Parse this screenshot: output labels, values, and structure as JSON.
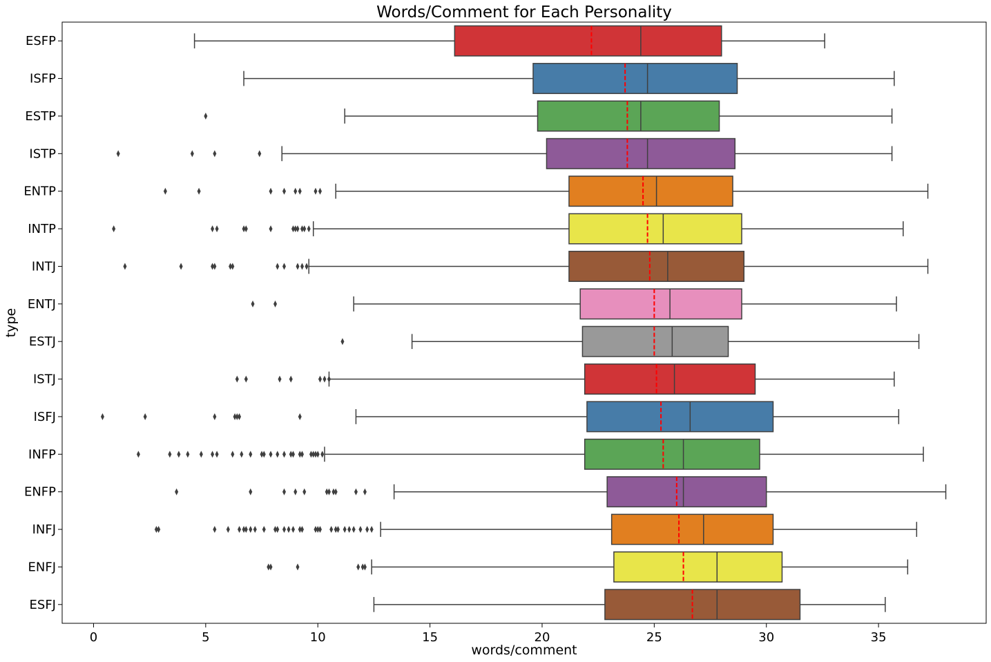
{
  "chart_data": {
    "type": "boxplot",
    "orientation": "horizontal",
    "title": "Words/Comment for Each Personality",
    "xlabel": "words/comment",
    "ylabel": "type",
    "xlim": [
      -1.4,
      39.8
    ],
    "xticks": [
      0,
      5,
      10,
      15,
      20,
      25,
      30,
      35
    ],
    "grid": false,
    "legend": "none",
    "mean_line_color": "#ff0000",
    "series": [
      {
        "label": "ESFP",
        "color": "#d03437",
        "whisker_low": 4.5,
        "q1": 16.1,
        "median": 24.4,
        "q3": 28.0,
        "whisker_high": 32.6,
        "mean": 22.2,
        "outliers": []
      },
      {
        "label": "ISFP",
        "color": "#477ca8",
        "whisker_low": 6.7,
        "q1": 19.6,
        "median": 24.7,
        "q3": 28.7,
        "whisker_high": 35.7,
        "mean": 23.7,
        "outliers": []
      },
      {
        "label": "ESTP",
        "color": "#5ba556",
        "whisker_low": 11.2,
        "q1": 19.8,
        "median": 24.4,
        "q3": 27.9,
        "whisker_high": 35.6,
        "mean": 23.8,
        "outliers": [
          5.0
        ]
      },
      {
        "label": "ISTP",
        "color": "#8e5a98",
        "whisker_low": 8.4,
        "q1": 20.2,
        "median": 24.7,
        "q3": 28.6,
        "whisker_high": 35.6,
        "mean": 23.8,
        "outliers": [
          1.1,
          4.4,
          5.4,
          7.4
        ]
      },
      {
        "label": "ENTP",
        "color": "#e17f20",
        "whisker_low": 10.8,
        "q1": 21.2,
        "median": 25.1,
        "q3": 28.5,
        "whisker_high": 37.2,
        "mean": 24.5,
        "outliers": [
          3.2,
          4.7,
          7.9,
          8.5,
          9.0,
          9.2,
          9.9,
          10.1
        ]
      },
      {
        "label": "INTP",
        "color": "#e8e54a",
        "whisker_low": 9.8,
        "q1": 21.2,
        "median": 25.4,
        "q3": 28.9,
        "whisker_high": 36.1,
        "mean": 24.7,
        "outliers": [
          0.9,
          5.3,
          5.5,
          6.7,
          6.8,
          7.9,
          8.9,
          9.0,
          9.1,
          9.3,
          9.4,
          9.6
        ]
      },
      {
        "label": "INTJ",
        "color": "#985a38",
        "whisker_low": 9.6,
        "q1": 21.2,
        "median": 25.6,
        "q3": 29.0,
        "whisker_high": 37.2,
        "mean": 24.8,
        "outliers": [
          1.4,
          3.9,
          5.3,
          5.4,
          6.1,
          6.2,
          8.2,
          8.5,
          9.1,
          9.3,
          9.5
        ]
      },
      {
        "label": "ENTJ",
        "color": "#e78fbd",
        "whisker_low": 11.6,
        "q1": 21.7,
        "median": 25.7,
        "q3": 28.9,
        "whisker_high": 35.8,
        "mean": 25.0,
        "outliers": [
          7.1,
          8.1
        ]
      },
      {
        "label": "ESTJ",
        "color": "#999999",
        "whisker_low": 14.2,
        "q1": 21.8,
        "median": 25.8,
        "q3": 28.3,
        "whisker_high": 36.8,
        "mean": 25.0,
        "outliers": [
          11.1
        ]
      },
      {
        "label": "ISTJ",
        "color": "#d03437",
        "whisker_low": 10.5,
        "q1": 21.9,
        "median": 25.9,
        "q3": 29.5,
        "whisker_high": 35.7,
        "mean": 25.1,
        "outliers": [
          6.4,
          6.8,
          8.3,
          8.8,
          10.1,
          10.3,
          10.5
        ]
      },
      {
        "label": "ISFJ",
        "color": "#477ca8",
        "whisker_low": 11.7,
        "q1": 22.0,
        "median": 26.6,
        "q3": 30.3,
        "whisker_high": 35.9,
        "mean": 25.3,
        "outliers": [
          0.4,
          2.3,
          5.4,
          6.3,
          6.4,
          6.5,
          9.2
        ]
      },
      {
        "label": "INFP",
        "color": "#5ba556",
        "whisker_low": 10.3,
        "q1": 21.9,
        "median": 26.3,
        "q3": 29.7,
        "whisker_high": 37.0,
        "mean": 25.4,
        "outliers": [
          2.0,
          3.4,
          3.8,
          4.2,
          4.8,
          5.3,
          5.5,
          6.2,
          6.6,
          7.0,
          7.5,
          7.6,
          7.9,
          8.2,
          8.5,
          8.8,
          8.9,
          9.2,
          9.3,
          9.7,
          9.8,
          9.9,
          10.0,
          10.2
        ]
      },
      {
        "label": "ENFP",
        "color": "#8e5a98",
        "whisker_low": 13.4,
        "q1": 22.9,
        "median": 26.3,
        "q3": 30.0,
        "whisker_high": 38.0,
        "mean": 26.0,
        "outliers": [
          3.7,
          7.0,
          8.5,
          9.0,
          9.4,
          10.4,
          10.5,
          10.7,
          10.8,
          11.7,
          12.1
        ]
      },
      {
        "label": "INFJ",
        "color": "#e17f20",
        "whisker_low": 12.8,
        "q1": 23.1,
        "median": 27.2,
        "q3": 30.3,
        "whisker_high": 36.7,
        "mean": 26.1,
        "outliers": [
          2.8,
          2.9,
          5.4,
          6.0,
          6.5,
          6.7,
          6.8,
          7.0,
          7.2,
          7.6,
          8.1,
          8.2,
          8.5,
          8.7,
          8.9,
          9.2,
          9.3,
          9.9,
          10.0,
          10.1,
          10.6,
          10.8,
          10.9,
          11.2,
          11.4,
          11.6,
          11.9,
          12.2,
          12.4
        ]
      },
      {
        "label": "ENFJ",
        "color": "#e8e54a",
        "whisker_low": 12.4,
        "q1": 23.2,
        "median": 27.8,
        "q3": 30.7,
        "whisker_high": 36.3,
        "mean": 26.3,
        "outliers": [
          7.8,
          7.9,
          9.1,
          11.8,
          12.0,
          12.1
        ]
      },
      {
        "label": "ESFJ",
        "color": "#985a38",
        "whisker_low": 12.5,
        "q1": 22.8,
        "median": 27.8,
        "q3": 31.5,
        "whisker_high": 35.3,
        "mean": 26.7,
        "outliers": []
      }
    ]
  }
}
